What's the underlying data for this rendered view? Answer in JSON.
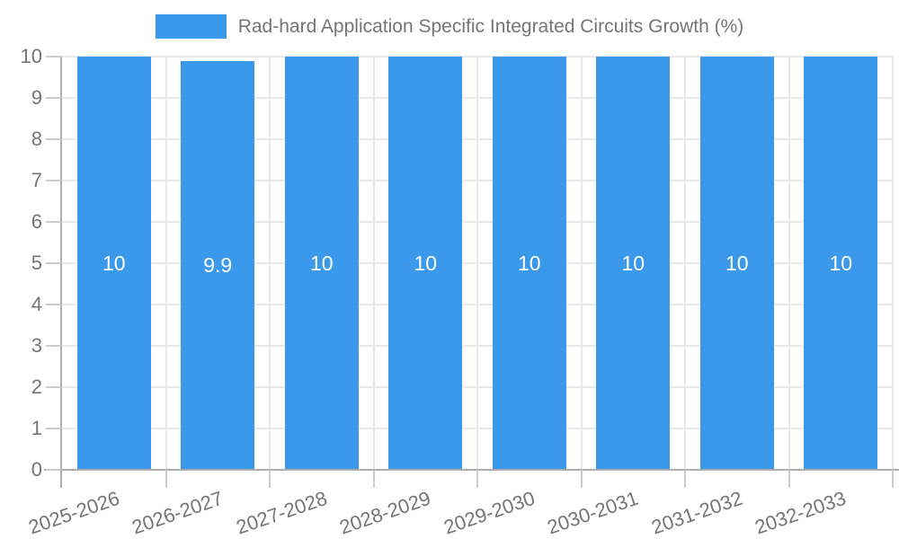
{
  "chart_data": {
    "type": "bar",
    "title": "Rad-hard Application Specific Integrated Circuits Growth (%)",
    "categories": [
      "2025-2026",
      "2026-2027",
      "2027-2028",
      "2028-2029",
      "2029-2030",
      "2030-2031",
      "2031-2032",
      "2032-2033"
    ],
    "values": [
      10,
      9.9,
      10,
      10,
      10,
      10,
      10,
      10
    ],
    "value_labels": [
      "10",
      "9.9",
      "10",
      "10",
      "10",
      "10",
      "10",
      "10"
    ],
    "xlabel": "",
    "ylabel": "",
    "ylim": [
      0,
      10
    ],
    "y_ticks": [
      0,
      1,
      2,
      3,
      4,
      5,
      6,
      7,
      8,
      9,
      10
    ],
    "y_tick_labels": [
      "0",
      "1",
      "2",
      "3",
      "4",
      "5",
      "6",
      "7",
      "8",
      "9",
      "10"
    ],
    "grid": true,
    "legend_position": "top-center",
    "x_label_rotation_deg": -19,
    "colors": {
      "bar": "#3b99ec",
      "bar_label": "#ffffff",
      "axis_line": "#aeaeae",
      "tick": "#cccccc",
      "gridline": "#e8e8e8",
      "text": "#757575",
      "background": "#ffffff"
    }
  }
}
